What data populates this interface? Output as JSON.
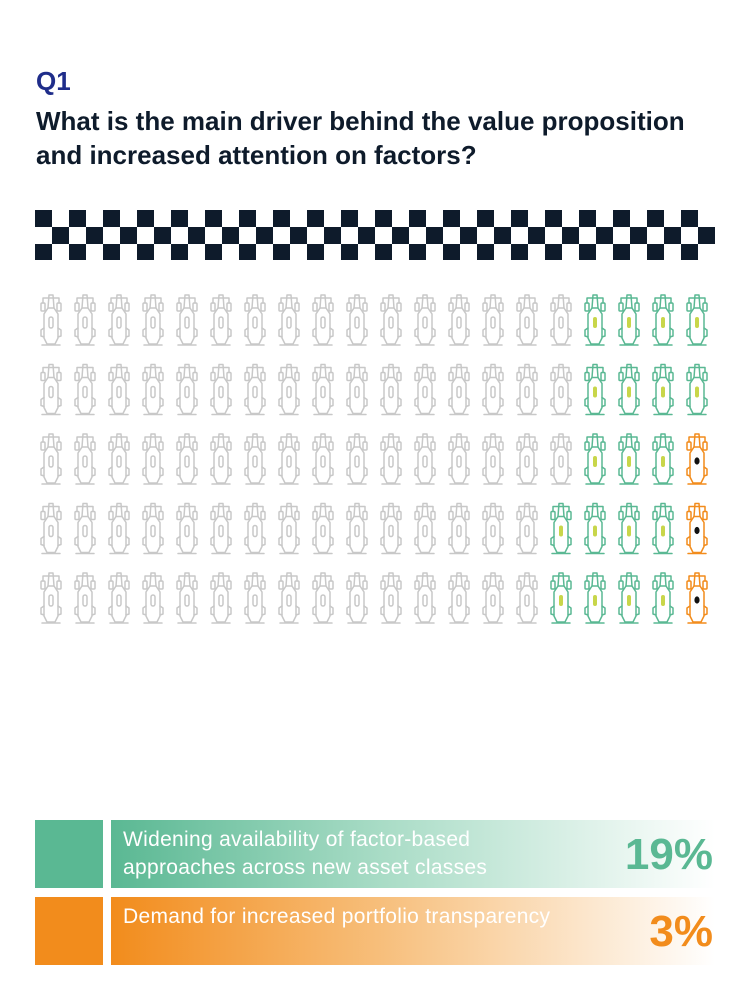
{
  "question": {
    "label": "Q1",
    "text": "What is the main driver behind the value proposition and increased attention on factors?"
  },
  "colors": {
    "inactive": "#c8c8c8",
    "green": "#5ab893",
    "orange": "#f28c1c",
    "title": "#1f2d8a",
    "text": "#0e1b2b",
    "flag": "#0e1b2b"
  },
  "icons": {
    "car": "race-car-icon",
    "flag": "checkered-flag"
  },
  "chart_data": {
    "type": "waffle",
    "rows": 5,
    "cols": 20,
    "total": 100,
    "grid": [
      "gggg",
      "gggg",
      "gggo",
      "ggggo",
      "ggggo"
    ],
    "series": [
      {
        "name": "Widening availability of factor-based approaches across new asset classes",
        "value": 19,
        "label": "19%",
        "color": "#5ab893"
      },
      {
        "name": "Demand for increased portfolio transparency",
        "value": 3,
        "label": "3%",
        "color": "#f28c1c"
      }
    ]
  },
  "legend": [
    {
      "label": "Widening availability of factor-based approaches across new asset classes",
      "value": "19%"
    },
    {
      "label": "Demand for increased portfolio transparency",
      "value": "3%"
    }
  ]
}
